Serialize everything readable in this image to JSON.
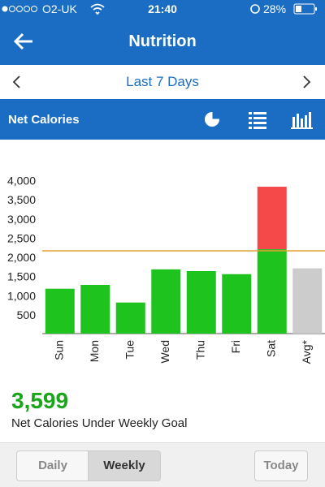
{
  "status_bar": {
    "carrier": "O2-UK",
    "time": "21:40",
    "battery": "28%"
  },
  "header": {
    "title": "Nutrition"
  },
  "date_nav": {
    "label": "Last 7 Days"
  },
  "toolbar": {
    "title": "Net Calories"
  },
  "chart_data": {
    "type": "stacked-bar",
    "categories": [
      "Sun",
      "Mon",
      "Tue",
      "Wed",
      "Thu",
      "Fri",
      "Sat",
      "Avg*"
    ],
    "series": [
      {
        "color": "#1ec31e",
        "values": [
          1170,
          1270,
          810,
          1675,
          1630,
          1550,
          2200,
          null
        ]
      },
      {
        "color": "#f54848",
        "values": [
          null,
          null,
          null,
          null,
          null,
          null,
          1630,
          null
        ]
      },
      {
        "color": "#cccccc",
        "values": [
          null,
          null,
          null,
          null,
          null,
          null,
          null,
          1700
        ]
      }
    ],
    "goal": {
      "value": 2200,
      "color": "#e0a030"
    },
    "ylim": [
      40,
      4400
    ],
    "yticks": [
      500,
      {
        "value": 1000,
        "label": "1,000"
      },
      {
        "value": 1500,
        "label": "1,500"
      },
      {
        "value": 2000,
        "label": "2,000"
      },
      {
        "value": 2500,
        "label": "2,500"
      },
      {
        "value": 3000,
        "label": "3,000"
      },
      {
        "value": 3500,
        "label": "3,500"
      },
      {
        "value": 4000,
        "label": "4,000"
      }
    ]
  },
  "summary": {
    "value": "3,599",
    "caption": "Net Calories Under Weekly Goal"
  },
  "tabs": {
    "items": [
      "Daily",
      "Weekly"
    ],
    "selected": 1,
    "today": "Today"
  }
}
